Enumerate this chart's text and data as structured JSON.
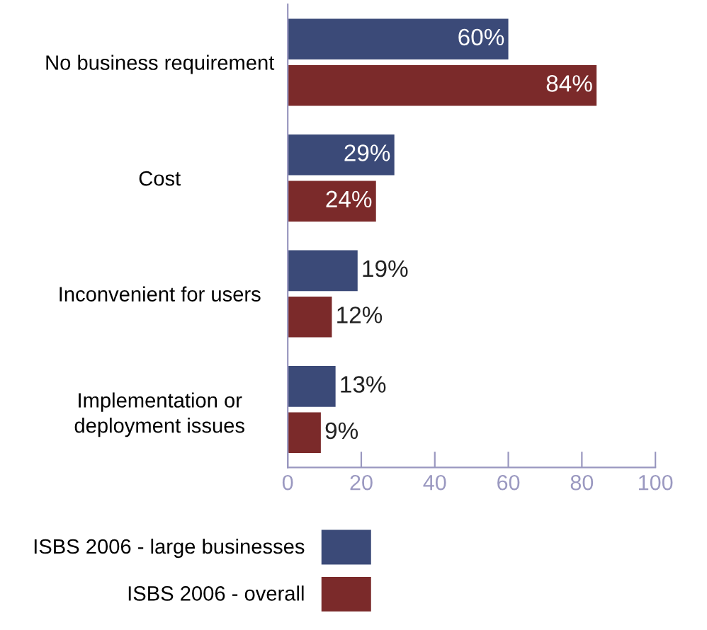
{
  "chart_data": {
    "type": "bar",
    "orientation": "horizontal",
    "categories": [
      "No business requirement",
      "Cost",
      "Inconvenient for users",
      "Implementation or\ndeployment issues"
    ],
    "series": [
      {
        "name": "ISBS 2006 - large businesses",
        "color": "#3b4a78",
        "values": [
          60,
          29,
          19,
          13
        ],
        "value_labels": [
          "60%",
          "29%",
          "19%",
          "13%"
        ]
      },
      {
        "name": "ISBS 2006 - overall",
        "color": "#7b2a2a",
        "values": [
          84,
          24,
          12,
          9
        ],
        "value_labels": [
          "84%",
          "24%",
          "12%",
          "9%"
        ]
      }
    ],
    "xlim": [
      0,
      100
    ],
    "xticks": [
      0,
      20,
      40,
      60,
      80,
      100
    ],
    "grid": false,
    "legend": "bottom"
  }
}
